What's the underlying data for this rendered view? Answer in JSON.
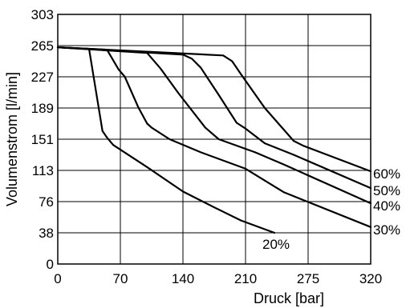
{
  "chart_data": {
    "type": "line",
    "xlabel": "Druck [bar]",
    "ylabel": "Volumenstrom [l/min]",
    "xlim": [
      0,
      320
    ],
    "ylim": [
      0,
      303
    ],
    "x_ticks": [
      0,
      70,
      140,
      210,
      275,
      320
    ],
    "y_ticks": [
      0,
      38,
      76,
      113,
      151,
      189,
      227,
      265,
      303
    ],
    "grid": true,
    "series": [
      {
        "name": "20%",
        "points": [
          [
            0,
            263
          ],
          [
            35,
            261
          ],
          [
            50,
            161
          ],
          [
            55,
            153
          ],
          [
            62,
            144
          ],
          [
            100,
            117
          ],
          [
            140,
            88
          ],
          [
            175,
            69
          ],
          [
            205,
            53
          ],
          [
            240,
            38
          ]
        ]
      },
      {
        "name": "30%",
        "points": [
          [
            0,
            263
          ],
          [
            55,
            260
          ],
          [
            68,
            236
          ],
          [
            75,
            227
          ],
          [
            90,
            190
          ],
          [
            100,
            170
          ],
          [
            105,
            165
          ],
          [
            125,
            151
          ],
          [
            160,
            135
          ],
          [
            210,
            115
          ],
          [
            250,
            87
          ],
          [
            320,
            45
          ]
        ]
      },
      {
        "name": "40%",
        "points": [
          [
            0,
            263
          ],
          [
            100,
            256
          ],
          [
            115,
            237
          ],
          [
            135,
            207
          ],
          [
            165,
            165
          ],
          [
            180,
            151
          ],
          [
            220,
            135
          ],
          [
            250,
            120
          ],
          [
            320,
            74
          ]
        ]
      },
      {
        "name": "50%",
        "points": [
          [
            0,
            263
          ],
          [
            140,
            254
          ],
          [
            150,
            249
          ],
          [
            160,
            238
          ],
          [
            180,
            205
          ],
          [
            200,
            171
          ],
          [
            210,
            164
          ],
          [
            230,
            146
          ],
          [
            260,
            132
          ],
          [
            320,
            92
          ]
        ]
      },
      {
        "name": "60%",
        "points": [
          [
            0,
            263
          ],
          [
            185,
            253
          ],
          [
            195,
            246
          ],
          [
            205,
            230
          ],
          [
            230,
            189
          ],
          [
            260,
            149
          ],
          [
            270,
            143
          ],
          [
            320,
            112
          ]
        ]
      }
    ]
  }
}
